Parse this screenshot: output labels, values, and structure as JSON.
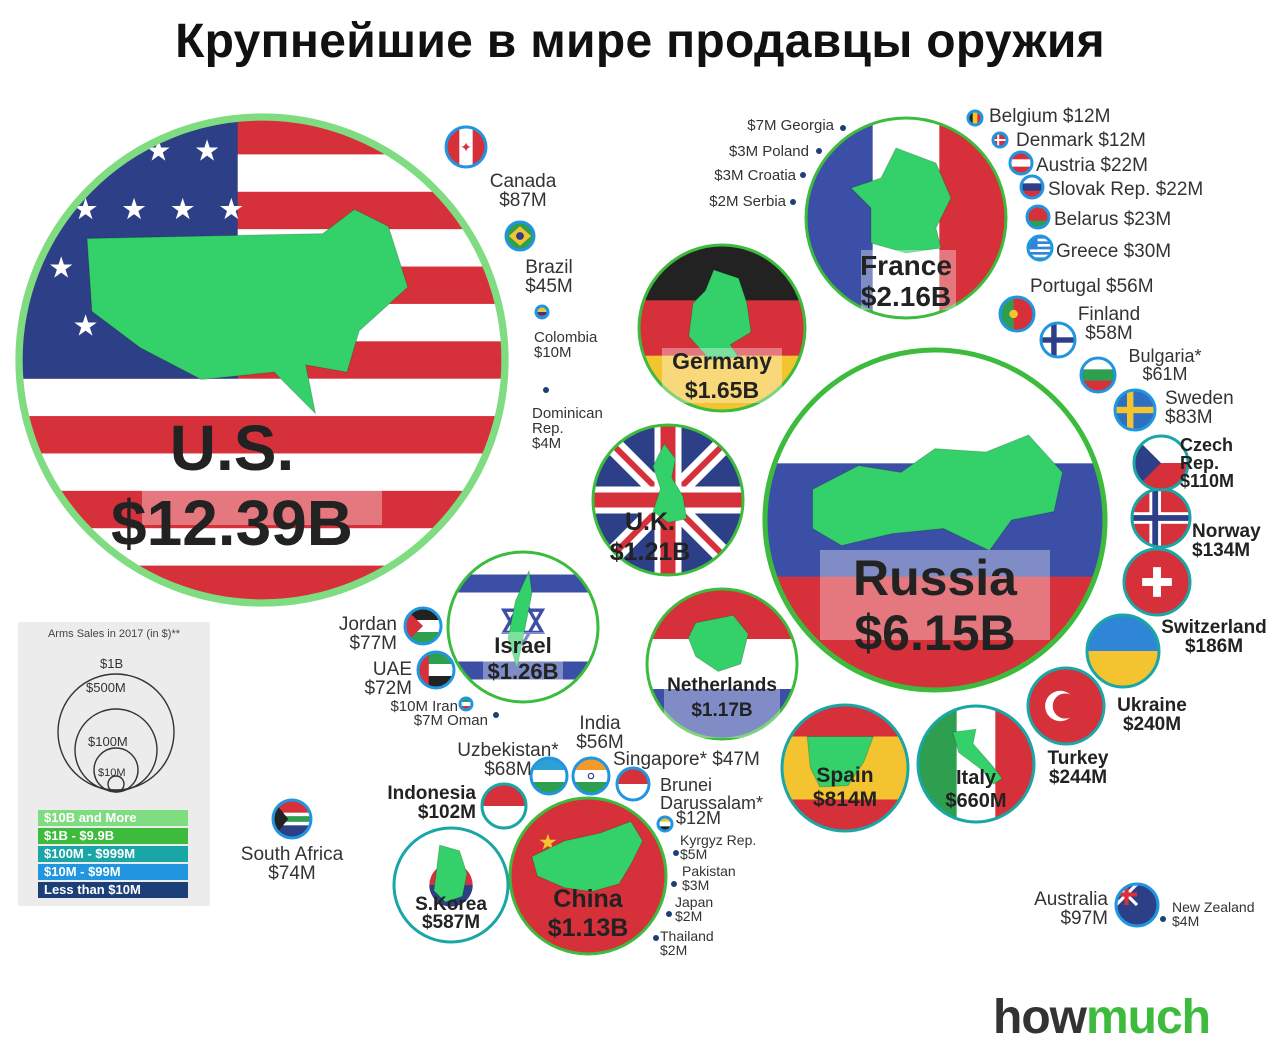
{
  "title": "Крупнейшие в мире продавцы оружия",
  "brand": {
    "part1": "how",
    "part2": "much"
  },
  "colors": {
    "tier_10B": "#7fdc80",
    "tier_1B": "#3dbb3d",
    "tier_100M": "#1aa6a6",
    "tier_10M": "#2196e0",
    "tier_lt10M": "#1c3f77",
    "land": "#34d16a"
  },
  "legend": {
    "title": "Arms Sales in 2017 (in $)**",
    "sizes": [
      "$1B",
      "$500M",
      "$100M",
      "$10M"
    ],
    "tiers": [
      {
        "label": "$10B and More",
        "color": "#7fdc80"
      },
      {
        "label": "$1B - $9.9B",
        "color": "#3dbb3d"
      },
      {
        "label": "$100M - $999M",
        "color": "#1aa6a6"
      },
      {
        "label": "$10M - $99M",
        "color": "#2196e0"
      },
      {
        "label": "Less than $10M",
        "color": "#1c3f77"
      }
    ]
  },
  "chart_data": {
    "type": "bubble",
    "unit": "USD",
    "series": [
      {
        "country": "U.S.",
        "label": "$12.39B",
        "value_musd": 12390,
        "flag": "usa"
      },
      {
        "country": "Russia",
        "label": "$6.15B",
        "value_musd": 6150,
        "flag": "russia"
      },
      {
        "country": "France",
        "label": "$2.16B",
        "value_musd": 2160,
        "flag": "france"
      },
      {
        "country": "Germany",
        "label": "$1.65B",
        "value_musd": 1650,
        "flag": "germany"
      },
      {
        "country": "Israel",
        "label": "$1.26B",
        "value_musd": 1260,
        "flag": "israel"
      },
      {
        "country": "U.K.",
        "label": "$1.21B",
        "value_musd": 1210,
        "flag": "uk"
      },
      {
        "country": "Netherlands",
        "label": "$1.17B",
        "value_musd": 1170,
        "flag": "netherlands"
      },
      {
        "country": "China",
        "label": "$1.13B",
        "value_musd": 1130,
        "flag": "china"
      },
      {
        "country": "Spain",
        "label": "$814M",
        "value_musd": 814,
        "flag": "spain"
      },
      {
        "country": "Italy",
        "label": "$660M",
        "value_musd": 660,
        "flag": "italy"
      },
      {
        "country": "S.Korea",
        "label": "$587M",
        "value_musd": 587,
        "flag": "skorea"
      },
      {
        "country": "Turkey",
        "label": "$244M",
        "value_musd": 244,
        "flag": "turkey"
      },
      {
        "country": "Ukraine",
        "label": "$240M",
        "value_musd": 240,
        "flag": "ukraine"
      },
      {
        "country": "Switzerland",
        "label": "$186M",
        "value_musd": 186,
        "flag": "switzerland"
      },
      {
        "country": "Norway",
        "label": "$134M",
        "value_musd": 134,
        "flag": "norway"
      },
      {
        "country": "Czech Rep.",
        "label": "$110M",
        "value_musd": 110,
        "flag": "czech"
      },
      {
        "country": "Indonesia",
        "label": "$102M",
        "value_musd": 102,
        "flag": "indonesia"
      },
      {
        "country": "Australia",
        "label": "$97M",
        "value_musd": 97,
        "flag": "australia"
      },
      {
        "country": "Canada",
        "label": "$87M",
        "value_musd": 87,
        "flag": "canada"
      },
      {
        "country": "Sweden",
        "label": "$83M",
        "value_musd": 83,
        "flag": "sweden"
      },
      {
        "country": "Jordan",
        "label": "$77M",
        "value_musd": 77,
        "flag": "jordan"
      },
      {
        "country": "South Africa",
        "label": "$74M",
        "value_musd": 74,
        "flag": "southafrica"
      },
      {
        "country": "UAE",
        "label": "$72M",
        "value_musd": 72,
        "flag": "uae"
      },
      {
        "country": "Uzbekistan*",
        "label": "$68M",
        "value_musd": 68,
        "flag": "uzbekistan"
      },
      {
        "country": "Bulgaria*",
        "label": "$61M",
        "value_musd": 61,
        "flag": "bulgaria"
      },
      {
        "country": "Finland",
        "label": "$58M",
        "value_musd": 58,
        "flag": "finland"
      },
      {
        "country": "India",
        "label": "$56M",
        "value_musd": 56,
        "flag": "india"
      },
      {
        "country": "Portugal",
        "label": "$56M",
        "value_musd": 56,
        "flag": "portugal"
      },
      {
        "country": "Singapore*",
        "label": "$47M",
        "value_musd": 47,
        "flag": "singapore"
      },
      {
        "country": "Brazil",
        "label": "$45M",
        "value_musd": 45,
        "flag": "brazil"
      },
      {
        "country": "Greece",
        "label": "$30M",
        "value_musd": 30,
        "flag": "greece"
      },
      {
        "country": "Belarus",
        "label": "$23M",
        "value_musd": 23,
        "flag": "belarus"
      },
      {
        "country": "Austria",
        "label": "$22M",
        "value_musd": 22,
        "flag": "austria"
      },
      {
        "country": "Slovak Rep.",
        "label": "$22M",
        "value_musd": 22,
        "flag": "slovakia"
      },
      {
        "country": "Belgium",
        "label": "$12M",
        "value_musd": 12,
        "flag": "belgium"
      },
      {
        "country": "Denmark",
        "label": "$12M",
        "value_musd": 12,
        "flag": "denmark"
      },
      {
        "country": "Brunei Darussalam*",
        "label": "$12M",
        "value_musd": 12,
        "flag": "brunei"
      },
      {
        "country": "Colombia",
        "label": "$10M",
        "value_musd": 10,
        "flag": "colombia"
      },
      {
        "country": "Iran",
        "label": "$10M",
        "value_musd": 10,
        "flag": "iran"
      },
      {
        "country": "Georgia",
        "label": "$7M",
        "value_musd": 7
      },
      {
        "country": "Oman",
        "label": "$7M",
        "value_musd": 7
      },
      {
        "country": "Kyrgyz Rep.",
        "label": "$5M",
        "value_musd": 5
      },
      {
        "country": "Dominican Rep.",
        "label": "$4M",
        "value_musd": 4
      },
      {
        "country": "New Zealand",
        "label": "$4M",
        "value_musd": 4
      },
      {
        "country": "Poland",
        "label": "$3M",
        "value_musd": 3
      },
      {
        "country": "Croatia",
        "label": "$3M",
        "value_musd": 3
      },
      {
        "country": "Pakistan",
        "label": "$3M",
        "value_musd": 3
      },
      {
        "country": "Serbia",
        "label": "$2M",
        "value_musd": 2
      },
      {
        "country": "Japan",
        "label": "$2M",
        "value_musd": 2
      },
      {
        "country": "Thailand",
        "label": "$2M",
        "value_musd": 2
      }
    ]
  }
}
